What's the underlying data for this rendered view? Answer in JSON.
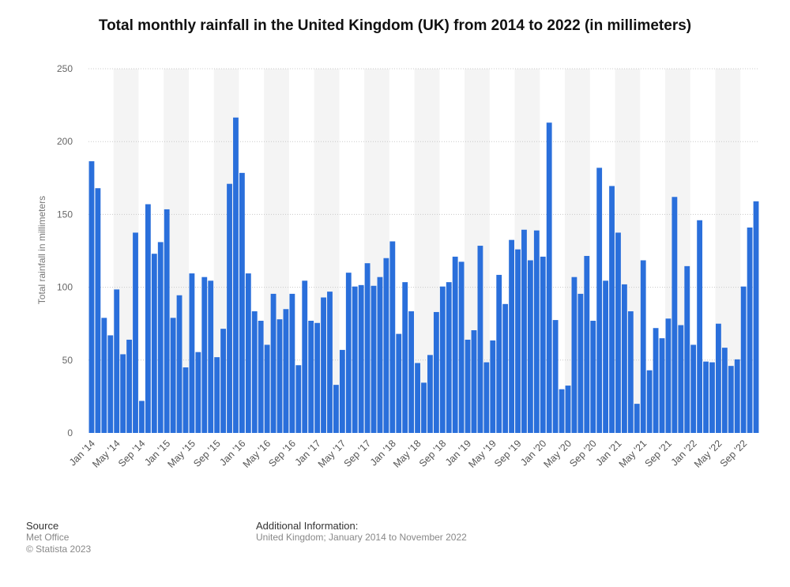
{
  "chart_data": {
    "type": "bar",
    "title": "Total monthly rainfall in the United Kingdom (UK) from 2014 to 2022 (in millimeters)",
    "ylabel": "Total rainfall in millimeters",
    "xlabel": "",
    "ylim": [
      0,
      250
    ],
    "yticks": [
      0,
      50,
      100,
      150,
      200,
      250
    ],
    "grid": true,
    "color": "#2a6fdb",
    "categories": [
      "Jan '14",
      "Feb '14",
      "Mar '14",
      "Apr '14",
      "May '14",
      "Jun '14",
      "Jul '14",
      "Aug '14",
      "Sep '14",
      "Oct '14",
      "Nov '14",
      "Dec '14",
      "Jan '15",
      "Feb '15",
      "Mar '15",
      "Apr '15",
      "May '15",
      "Jun '15",
      "Jul '15",
      "Aug '15",
      "Sep '15",
      "Oct '15",
      "Nov '15",
      "Dec '15",
      "Jan '16",
      "Feb '16",
      "Mar '16",
      "Apr '16",
      "May '16",
      "Jun '16",
      "Jul '16",
      "Aug '16",
      "Sep '16",
      "Oct '16",
      "Nov '16",
      "Dec '16",
      "Jan '17",
      "Feb '17",
      "Mar '17",
      "Apr '17",
      "May '17",
      "Jun '17",
      "Jul '17",
      "Aug '17",
      "Sep '17",
      "Oct '17",
      "Nov '17",
      "Dec '17",
      "Jan '18",
      "Feb '18",
      "Mar '18",
      "Apr '18",
      "May '18",
      "Jun '18",
      "Jul '18",
      "Aug '18",
      "Sep '18",
      "Oct '18",
      "Nov '18",
      "Dec '18",
      "Jan '19",
      "Feb '19",
      "Mar '19",
      "Apr '19",
      "May '19",
      "Jun '19",
      "Jul '19",
      "Aug '19",
      "Sep '19",
      "Oct '19",
      "Nov '19",
      "Dec '19",
      "Jan '20",
      "Feb '20",
      "Mar '20",
      "Apr '20",
      "May '20",
      "Jun '20",
      "Jul '20",
      "Aug '20",
      "Sep '20",
      "Oct '20",
      "Nov '20",
      "Dec '20",
      "Jan '21",
      "Feb '21",
      "Mar '21",
      "Apr '21",
      "May '21",
      "Jun '21",
      "Jul '21",
      "Aug '21",
      "Sep '21",
      "Oct '21",
      "Nov '21",
      "Dec '21",
      "Jan '22",
      "Feb '22",
      "Mar '22",
      "Apr '22",
      "May '22",
      "Jun '22",
      "Jul '22",
      "Aug '22",
      "Sep '22",
      "Oct '22",
      "Nov '22"
    ],
    "x_tick_labels": [
      "Jan '14",
      "May '14",
      "Sep '14",
      "Jan '15",
      "May '15",
      "Sep '15",
      "Jan '16",
      "May '16",
      "Sep '16",
      "Jan '17",
      "May '17",
      "Sep '17",
      "Jan '18",
      "May '18",
      "Sep '18",
      "Jan '19",
      "May '19",
      "Sep '19",
      "Jan '20",
      "May '20",
      "Sep '20",
      "Jan '21",
      "May '21",
      "Sep '21",
      "Jan '22",
      "May '22",
      "Sep '22"
    ],
    "values": [
      186.5,
      168,
      79,
      67,
      98.5,
      54,
      64,
      137.5,
      22,
      157,
      123,
      131,
      153.5,
      79,
      94.5,
      45,
      109.5,
      55.5,
      107,
      104.5,
      52,
      71.5,
      171,
      216.5,
      178.5,
      109.5,
      83.5,
      77,
      60.5,
      95.5,
      78,
      85,
      95.5,
      46.5,
      104.5,
      77,
      75.5,
      93,
      97,
      33,
      57,
      110,
      100.5,
      101.5,
      116.5,
      101,
      107,
      120,
      131.5,
      68,
      103.5,
      83.5,
      48,
      34.5,
      53.5,
      83,
      100.5,
      103.5,
      121,
      117.5,
      64,
      70.5,
      128.5,
      48.5,
      63.5,
      108.5,
      88.5,
      132.5,
      126,
      139.5,
      118.5,
      139,
      121,
      213,
      77.5,
      30,
      32.5,
      107,
      95.5,
      121.5,
      77,
      182,
      104.5,
      169.5,
      137.5,
      102,
      83.5,
      20,
      118.5,
      43,
      72,
      65,
      78.5,
      162,
      74,
      114.5,
      60.5,
      146,
      49,
      48.5,
      75,
      58.5,
      46,
      50.5,
      100.5,
      141,
      159
    ]
  },
  "footer": {
    "source_heading": "Source",
    "source_name": "Met Office",
    "copyright": "© Statista 2023",
    "info_heading": "Additional Information:",
    "info_text": "United Kingdom; January 2014 to November 2022"
  }
}
